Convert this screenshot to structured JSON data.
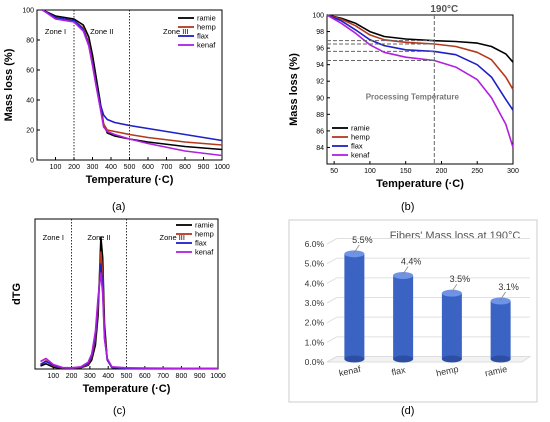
{
  "panel_labels": [
    "(a)",
    "(b)",
    "(c)",
    "(d)"
  ],
  "colors": {
    "ramie": "#000000",
    "hemp": "#b5391e",
    "flax": "#1f1fc8",
    "kenaf": "#b11fe0"
  },
  "chart_data": [
    {
      "type": "line",
      "panel": "(a)",
      "xlabel": "Temperature (·C)",
      "ylabel": "Mass loss (%)",
      "xlim": [
        0,
        1000
      ],
      "ylim": [
        0,
        100
      ],
      "xticks": [
        100,
        200,
        300,
        400,
        500,
        600,
        700,
        800,
        900,
        1000
      ],
      "yticks": [
        0,
        20,
        40,
        60,
        80,
        100
      ],
      "zones": [
        {
          "label": "Zone I",
          "x_end": 200
        },
        {
          "label": "Zone II",
          "x_end": 500
        },
        {
          "label": "Zone III",
          "x_end": null
        }
      ],
      "legend_position": "top-right",
      "series": [
        {
          "name": "ramie",
          "x": [
            30,
            100,
            150,
            200,
            250,
            280,
            300,
            320,
            340,
            360,
            380,
            420,
            500,
            600,
            800,
            1000
          ],
          "y": [
            100,
            96,
            95,
            94,
            90,
            82,
            70,
            55,
            40,
            24,
            18,
            16,
            14,
            12,
            9,
            7
          ]
        },
        {
          "name": "hemp",
          "x": [
            30,
            100,
            150,
            200,
            250,
            280,
            300,
            320,
            340,
            360,
            380,
            420,
            500,
            600,
            800,
            1000
          ],
          "y": [
            100,
            95,
            94,
            93,
            88,
            78,
            65,
            50,
            36,
            24,
            20,
            19,
            17,
            15,
            12,
            10
          ]
        },
        {
          "name": "flax",
          "x": [
            30,
            100,
            150,
            200,
            250,
            280,
            300,
            320,
            340,
            360,
            380,
            420,
            500,
            600,
            800,
            1000
          ],
          "y": [
            100,
            95,
            94,
            93,
            87,
            77,
            64,
            50,
            38,
            30,
            27,
            25,
            23,
            21,
            17,
            13
          ]
        },
        {
          "name": "kenaf",
          "x": [
            30,
            100,
            150,
            200,
            250,
            280,
            300,
            320,
            340,
            360,
            380,
            420,
            500,
            600,
            800,
            1000
          ],
          "y": [
            100,
            94,
            93,
            92,
            86,
            76,
            63,
            49,
            36,
            22,
            19,
            17,
            14,
            11,
            6,
            3
          ]
        }
      ]
    },
    {
      "type": "line",
      "panel": "(b)",
      "xlabel": "Temperature (·C)",
      "ylabel": "Mass loss (%)",
      "xlim": [
        40,
        300
      ],
      "ylim": [
        82,
        100
      ],
      "xticks": [
        50,
        100,
        150,
        200,
        250,
        300
      ],
      "yticks": [
        84,
        86,
        88,
        90,
        92,
        94,
        96,
        98,
        100
      ],
      "annotation": "190°C",
      "annotation_line_x": 190,
      "dashed_levels": [
        96.9,
        96.5,
        95.6,
        94.5
      ],
      "region_label": "Processing Temperature",
      "legend_position": "bottom-left",
      "series": [
        {
          "name": "ramie",
          "x": [
            40,
            60,
            80,
            100,
            120,
            150,
            190,
            220,
            250,
            270,
            290,
            300
          ],
          "y": [
            100,
            99.6,
            99.0,
            98.0,
            97.4,
            97.1,
            96.9,
            96.8,
            96.6,
            96.2,
            95.3,
            94.3
          ]
        },
        {
          "name": "hemp",
          "x": [
            40,
            60,
            80,
            100,
            120,
            150,
            190,
            220,
            250,
            270,
            290,
            300
          ],
          "y": [
            100,
            99.5,
            98.7,
            97.6,
            97.0,
            96.7,
            96.5,
            96.2,
            95.5,
            94.6,
            92.5,
            91.0
          ]
        },
        {
          "name": "flax",
          "x": [
            40,
            60,
            80,
            100,
            120,
            150,
            190,
            220,
            250,
            270,
            290,
            300
          ],
          "y": [
            100,
            99.3,
            98.2,
            97.0,
            96.3,
            95.8,
            95.6,
            95.2,
            94.0,
            92.5,
            89.8,
            88.5
          ]
        },
        {
          "name": "kenaf",
          "x": [
            40,
            60,
            80,
            100,
            120,
            150,
            190,
            220,
            250,
            270,
            290,
            300
          ],
          "y": [
            100,
            99.0,
            97.8,
            96.4,
            95.5,
            94.9,
            94.5,
            93.7,
            92.2,
            90.0,
            86.8,
            84.0
          ]
        }
      ]
    },
    {
      "type": "line",
      "panel": "(c)",
      "xlabel": "Temperature (·C)",
      "ylabel": "dTG",
      "xlim": [
        0,
        1000
      ],
      "xticks": [
        100,
        200,
        300,
        400,
        500,
        600,
        700,
        800,
        900,
        1000
      ],
      "zones": [
        {
          "label": "Zone I",
          "x_end": 200
        },
        {
          "label": "Zone II",
          "x_end": 500
        },
        {
          "label": "Zone III",
          "x_end": null
        }
      ],
      "legend_position": "top-right",
      "series": [
        {
          "name": "ramie",
          "x": [
            30,
            60,
            100,
            150,
            200,
            250,
            290,
            310,
            330,
            345,
            360,
            370,
            380,
            395,
            420,
            500,
            600,
            800,
            1000
          ],
          "y": [
            0.2,
            0.35,
            0.12,
            0.05,
            0.05,
            0.08,
            0.25,
            0.6,
            1.6,
            3.6,
            8.8,
            7.4,
            3.0,
            0.6,
            0.1,
            0.05,
            0.05,
            0.05,
            0.05
          ]
        },
        {
          "name": "hemp",
          "x": [
            30,
            60,
            100,
            150,
            200,
            250,
            290,
            310,
            330,
            345,
            360,
            370,
            380,
            395,
            420,
            500,
            600,
            800,
            1000
          ],
          "y": [
            0.3,
            0.55,
            0.2,
            0.06,
            0.05,
            0.1,
            0.3,
            0.8,
            2.0,
            4.2,
            7.8,
            6.3,
            2.4,
            0.6,
            0.1,
            0.05,
            0.05,
            0.05,
            0.05
          ]
        },
        {
          "name": "flax",
          "x": [
            30,
            60,
            100,
            150,
            200,
            250,
            290,
            310,
            330,
            345,
            360,
            370,
            380,
            395,
            420,
            500,
            600,
            800,
            1000
          ],
          "y": [
            0.3,
            0.5,
            0.25,
            0.08,
            0.06,
            0.12,
            0.35,
            0.9,
            2.2,
            4.5,
            7.0,
            5.4,
            2.1,
            0.6,
            0.1,
            0.05,
            0.05,
            0.05,
            0.05
          ]
        },
        {
          "name": "kenaf",
          "x": [
            30,
            60,
            100,
            150,
            200,
            250,
            290,
            310,
            330,
            345,
            360,
            370,
            380,
            395,
            420,
            500,
            600,
            800,
            1000
          ],
          "y": [
            0.5,
            0.7,
            0.3,
            0.1,
            0.08,
            0.15,
            0.45,
            1.0,
            2.5,
            4.8,
            6.4,
            5.0,
            2.0,
            0.7,
            0.15,
            0.08,
            0.06,
            0.05,
            0.05
          ]
        }
      ]
    },
    {
      "type": "bar",
      "panel": "(d)",
      "title": "Fibers' Mass loss at 190°C",
      "categories": [
        "kenaf",
        "flax",
        "hemp",
        "ramie"
      ],
      "values": [
        5.5,
        4.4,
        3.5,
        3.1
      ],
      "data_labels": [
        "5.5%",
        "4.4%",
        "3.5%",
        "3.1%"
      ],
      "ylim": [
        0,
        6.0
      ],
      "yticks": [
        "0.0%",
        "1.0%",
        "2.0%",
        "3.0%",
        "4.0%",
        "5.0%",
        "6.0%"
      ],
      "bar_color": "#3a63c4"
    }
  ]
}
